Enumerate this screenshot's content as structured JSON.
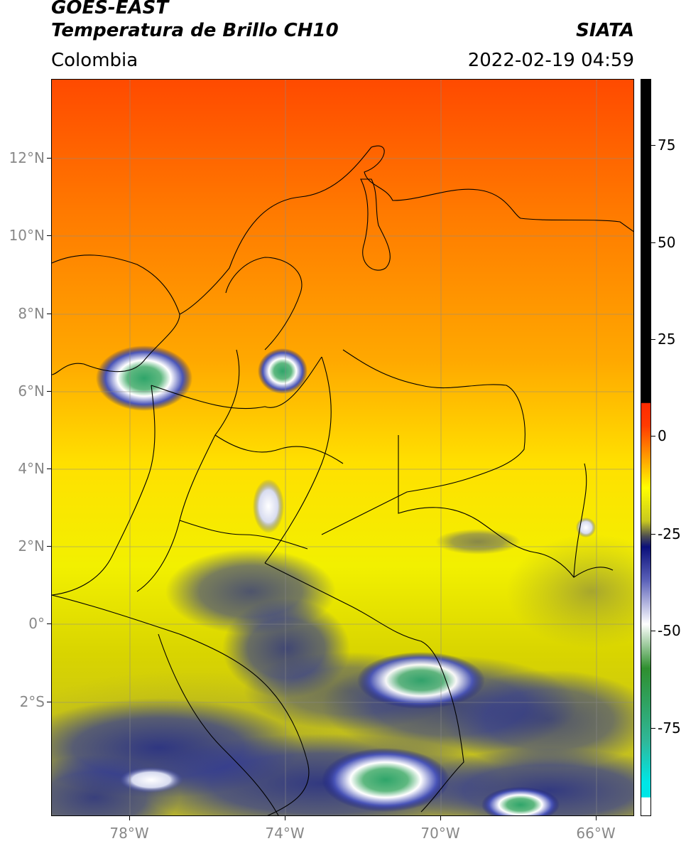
{
  "header": {
    "title_line1": "GOES-EAST",
    "title_line2": "Temperatura de Brillo CH10",
    "brand": "SIATA",
    "region": "Colombia",
    "timestamp": "2022-02-19 04:59"
  },
  "axes": {
    "lat_labels": [
      "12°N",
      "10°N",
      "8°N",
      "6°N",
      "4°N",
      "2°N",
      "0°",
      "2°S"
    ],
    "lon_labels": [
      "78°W",
      "74°W",
      "70°W",
      "66°W"
    ]
  },
  "colorbar": {
    "ticks": [
      "75",
      "50",
      "25",
      "0",
      "-25",
      "-50",
      "-75"
    ],
    "colors": {
      "black": "#000000",
      "red": "#ff2a00",
      "orange": "#ff9400",
      "yellow": "#ffff00",
      "olive": "#b8b82a",
      "navy": "#0a0f7a",
      "white": "#ffffff",
      "green": "#2f8f2f",
      "teal": "#2fb89a",
      "cyan": "#00e6e6"
    }
  }
}
